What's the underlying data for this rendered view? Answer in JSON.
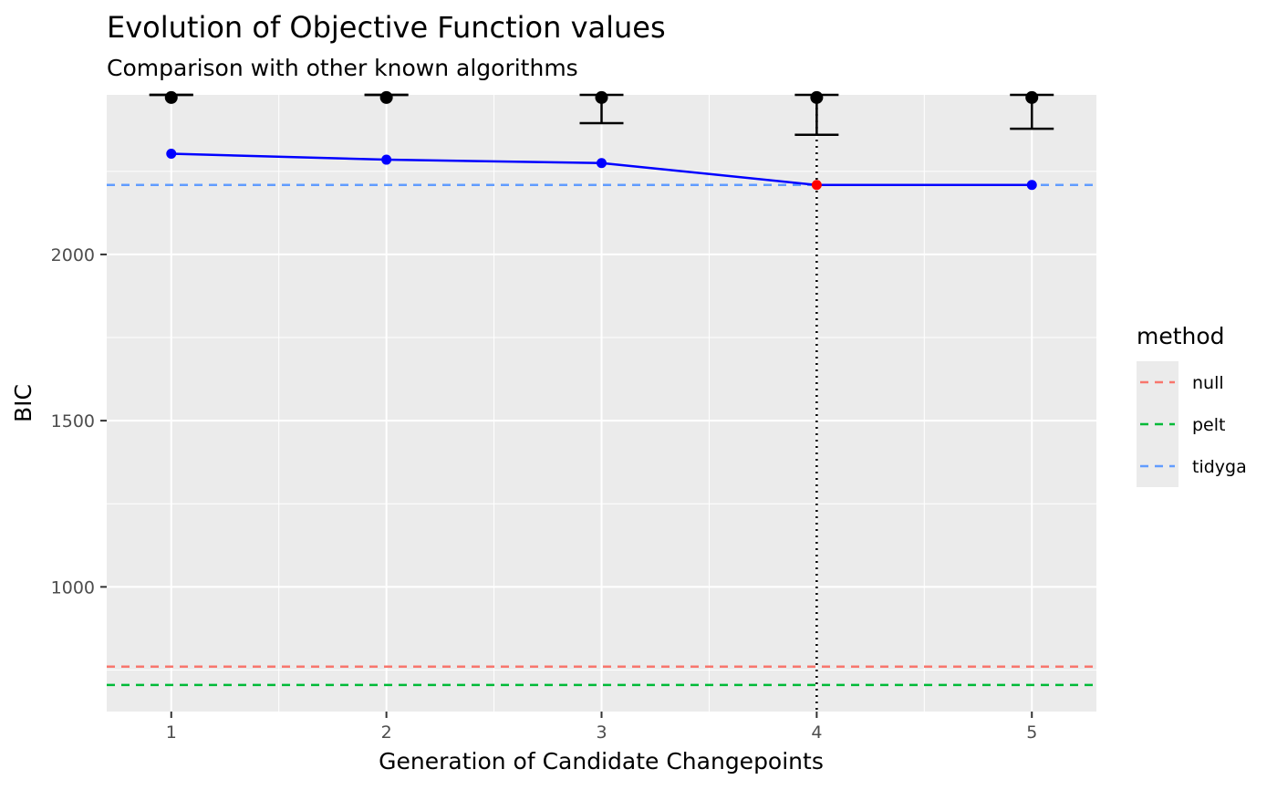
{
  "chart_data": {
    "type": "line",
    "title": "Evolution of Objective Function values",
    "subtitle": "Comparison with other known algorithms",
    "xlabel": "Generation of Candidate Changepoints",
    "ylabel": "BIC",
    "x": [
      1,
      2,
      3,
      4,
      5
    ],
    "xlim": [
      0.7,
      5.3
    ],
    "ylim": [
      625,
      2480
    ],
    "x_ticks": [
      1,
      2,
      3,
      4,
      5
    ],
    "y_ticks": [
      1000,
      1500,
      2000
    ],
    "grid": true,
    "best_series": {
      "values": [
        2303,
        2285,
        2275,
        2209,
        2209
      ],
      "color": "#0000ff"
    },
    "highlight_point": {
      "x": 4,
      "y": 2209,
      "color": "#ff0000"
    },
    "vertical_line_x": 4,
    "summary_points": {
      "mean": [
        2472,
        2472,
        2472,
        2472,
        2472
      ],
      "upper": [
        2480,
        2480,
        2480,
        2480,
        2480
      ],
      "lower": [
        2480,
        2480,
        2395,
        2360,
        2378
      ]
    },
    "reference_lines": [
      {
        "method": "null",
        "value": 760,
        "color": "#f8766d"
      },
      {
        "method": "pelt",
        "value": 705,
        "color": "#00ba38"
      },
      {
        "method": "tidyga",
        "value": 2209,
        "color": "#619cff"
      }
    ],
    "legend": {
      "title": "method",
      "position": "right",
      "entries": [
        "null",
        "pelt",
        "tidyga"
      ]
    }
  }
}
